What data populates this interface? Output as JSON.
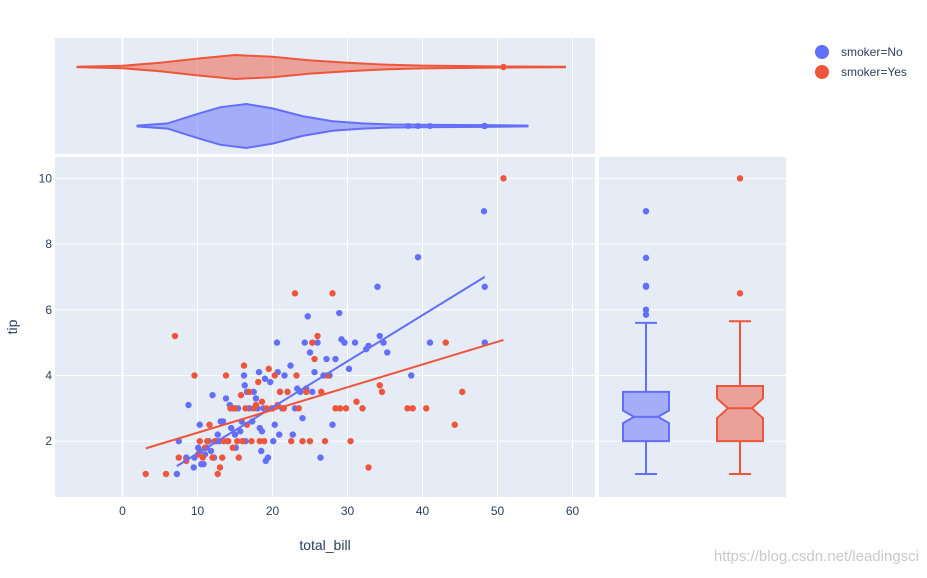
{
  "colors": {
    "no": "#636efa",
    "yes": "#ef553b",
    "plot_bg": "#e5ecf6",
    "text": "#2a3f5f"
  },
  "legend": {
    "items": [
      {
        "label": "smoker=No",
        "color": "#636efa"
      },
      {
        "label": "smoker=Yes",
        "color": "#ef553b"
      }
    ]
  },
  "watermark": "https://blog.csdn.net/leadingsci",
  "chart_data": [
    {
      "type": "scatter",
      "xlabel": "total_bill",
      "ylabel": "tip",
      "xlim": [
        -9,
        63
      ],
      "ylim": [
        0.3,
        10.65
      ],
      "xticks": [
        0,
        10,
        20,
        30,
        40,
        50,
        60
      ],
      "yticks": [
        2,
        4,
        6,
        8,
        10
      ],
      "grid": true,
      "legend_position": "top-right",
      "series": [
        {
          "name": "smoker=No",
          "color": "#636efa",
          "points": [
            [
              7.25,
              1.0
            ],
            [
              7.5,
              2.0
            ],
            [
              8.5,
              1.5
            ],
            [
              8.8,
              3.1
            ],
            [
              9.5,
              1.2
            ],
            [
              9.6,
              1.5
            ],
            [
              10.1,
              1.8
            ],
            [
              10.3,
              1.7
            ],
            [
              10.3,
              2.5
            ],
            [
              10.5,
              1.3
            ],
            [
              10.8,
              1.3
            ],
            [
              11,
              1.6
            ],
            [
              11.2,
              1.8
            ],
            [
              11.5,
              2.0
            ],
            [
              11.8,
              1.7
            ],
            [
              12,
              3.4
            ],
            [
              12.2,
              1.5
            ],
            [
              12.5,
              2.0
            ],
            [
              12.7,
              2.2
            ],
            [
              12.9,
              2.0
            ],
            [
              13.1,
              2.6
            ],
            [
              13.4,
              2.6
            ],
            [
              13.8,
              3.3
            ],
            [
              14,
              2.0
            ],
            [
              14.3,
              3.1
            ],
            [
              14.5,
              2.4
            ],
            [
              14.8,
              3.0
            ],
            [
              15,
              2.2
            ],
            [
              15.1,
              1.8
            ],
            [
              15.4,
              3.0
            ],
            [
              15.7,
              2.3
            ],
            [
              15.9,
              2.6
            ],
            [
              16.2,
              4.0
            ],
            [
              16.3,
              3.7
            ],
            [
              16.4,
              2.0
            ],
            [
              16.6,
              3.5
            ],
            [
              16.9,
              3.0
            ],
            [
              17.3,
              2.6
            ],
            [
              17.5,
              3.5
            ],
            [
              17.8,
              3.3
            ],
            [
              18,
              3.0
            ],
            [
              18.2,
              4.1
            ],
            [
              18.3,
              2.4
            ],
            [
              18.5,
              1.7
            ],
            [
              18.6,
              2.3
            ],
            [
              18.8,
              3.0
            ],
            [
              19,
              3.9
            ],
            [
              19.1,
              1.4
            ],
            [
              19.4,
              1.5
            ],
            [
              19.7,
              3.8
            ],
            [
              20,
              3.0
            ],
            [
              20.1,
              2.0
            ],
            [
              20.3,
              2.5
            ],
            [
              20.6,
              5.0
            ],
            [
              20.7,
              4.1
            ],
            [
              20.9,
              2.2
            ],
            [
              21,
              3.5
            ],
            [
              21.3,
              3.0
            ],
            [
              21.6,
              4.0
            ],
            [
              22,
              3.5
            ],
            [
              22.4,
              4.3
            ],
            [
              22.7,
              2.2
            ],
            [
              23,
              3.0
            ],
            [
              23.3,
              3.6
            ],
            [
              23.7,
              3.5
            ],
            [
              24,
              2.7
            ],
            [
              24.3,
              5.0
            ],
            [
              24.5,
              3.6
            ],
            [
              24.7,
              5.8
            ],
            [
              25,
              4.7
            ],
            [
              25.3,
              3.5
            ],
            [
              25.6,
              4.1
            ],
            [
              26,
              5.0
            ],
            [
              26.4,
              1.5
            ],
            [
              26.8,
              4.0
            ],
            [
              27.2,
              4.5
            ],
            [
              27.6,
              4.0
            ],
            [
              28,
              2.5
            ],
            [
              28.4,
              4.5
            ],
            [
              28.9,
              5.9
            ],
            [
              29.2,
              5.1
            ],
            [
              29.6,
              5.0
            ],
            [
              30.2,
              4.2
            ],
            [
              31,
              5.0
            ],
            [
              32.5,
              4.8
            ],
            [
              32.8,
              4.9
            ],
            [
              34,
              6.7
            ],
            [
              34.3,
              5.2
            ],
            [
              34.8,
              5.0
            ],
            [
              35.3,
              4.7
            ],
            [
              38.5,
              4.0
            ],
            [
              39.4,
              7.6
            ],
            [
              41,
              5.0
            ],
            [
              48.2,
              9.0
            ],
            [
              48.3,
              6.7
            ],
            [
              48.3,
              5.0
            ]
          ],
          "trendline": {
            "x": [
              7.25,
              48.3
            ],
            "y": [
              1.24,
              7.0
            ]
          }
        },
        {
          "name": "smoker=Yes",
          "color": "#ef553b",
          "points": [
            [
              3.1,
              1.0
            ],
            [
              5.8,
              1.0
            ],
            [
              7.0,
              5.2
            ],
            [
              7.5,
              1.5
            ],
            [
              8.5,
              1.4
            ],
            [
              9.6,
              4.0
            ],
            [
              10.1,
              1.6
            ],
            [
              10.3,
              2.0
            ],
            [
              10.7,
              1.5
            ],
            [
              11.0,
              1.8
            ],
            [
              11.3,
              2.0
            ],
            [
              11.6,
              2.5
            ],
            [
              12.0,
              1.5
            ],
            [
              12.3,
              2.0
            ],
            [
              12.7,
              1.0
            ],
            [
              13.0,
              1.2
            ],
            [
              13.3,
              1.5
            ],
            [
              13.5,
              2.0
            ],
            [
              13.8,
              4.0
            ],
            [
              14.1,
              2.0
            ],
            [
              14.4,
              3.0
            ],
            [
              14.7,
              1.8
            ],
            [
              15.0,
              3.0
            ],
            [
              15.3,
              2.0
            ],
            [
              15.5,
              1.5
            ],
            [
              15.8,
              3.4
            ],
            [
              16.0,
              2.0
            ],
            [
              16.2,
              4.3
            ],
            [
              16.4,
              3.0
            ],
            [
              16.6,
              2.5
            ],
            [
              16.9,
              3.5
            ],
            [
              17.2,
              2.0
            ],
            [
              17.5,
              3.0
            ],
            [
              17.8,
              3.1
            ],
            [
              18.1,
              3.8
            ],
            [
              18.3,
              2.0
            ],
            [
              18.6,
              3.2
            ],
            [
              18.9,
              2.0
            ],
            [
              19.2,
              3.0
            ],
            [
              19.5,
              4.2
            ],
            [
              19.9,
              3.0
            ],
            [
              20.3,
              4.0
            ],
            [
              20.7,
              3.1
            ],
            [
              21.0,
              3.5
            ],
            [
              21.5,
              3.0
            ],
            [
              22.0,
              3.5
            ],
            [
              22.5,
              2.0
            ],
            [
              23.0,
              6.5
            ],
            [
              23.2,
              4.0
            ],
            [
              23.5,
              3.0
            ],
            [
              24.0,
              2.0
            ],
            [
              24.5,
              3.5
            ],
            [
              25.0,
              2.0
            ],
            [
              25.3,
              5.0
            ],
            [
              25.6,
              4.5
            ],
            [
              26.0,
              5.2
            ],
            [
              26.5,
              3.5
            ],
            [
              27.0,
              2.0
            ],
            [
              27.3,
              4.0
            ],
            [
              28.0,
              6.5
            ],
            [
              28.4,
              3.0
            ],
            [
              29.0,
              3.0
            ],
            [
              29.8,
              3.0
            ],
            [
              30.4,
              2.0
            ],
            [
              31.2,
              3.2
            ],
            [
              32.0,
              3.0
            ],
            [
              32.8,
              1.2
            ],
            [
              34.3,
              3.7
            ],
            [
              34.6,
              3.5
            ],
            [
              38.0,
              3.0
            ],
            [
              38.7,
              3.0
            ],
            [
              40.5,
              3.0
            ],
            [
              43.1,
              5.0
            ],
            [
              44.3,
              2.5
            ],
            [
              45.3,
              3.5
            ],
            [
              50.8,
              10.0
            ]
          ],
          "trendline": {
            "x": [
              3.1,
              50.8
            ],
            "y": [
              1.78,
              5.08
            ]
          }
        }
      ]
    },
    {
      "type": "violin",
      "orientation": "horizontal",
      "shared_x": "total_bill",
      "series": [
        {
          "name": "smoker=No",
          "color": "#636efa",
          "range": [
            2,
            54
          ],
          "profile": [
            [
              2,
              0.02
            ],
            [
              6,
              0.12
            ],
            [
              10,
              0.55
            ],
            [
              13,
              0.85
            ],
            [
              16.5,
              1.0
            ],
            [
              20,
              0.8
            ],
            [
              24,
              0.45
            ],
            [
              28,
              0.22
            ],
            [
              32,
              0.12
            ],
            [
              36,
              0.07
            ],
            [
              42,
              0.05
            ],
            [
              48,
              0.04
            ],
            [
              54,
              0.02
            ]
          ],
          "outliers": [
            38.1,
            39.4,
            41.0,
            48.2,
            48.3
          ],
          "marker": 48.3
        },
        {
          "name": "smoker=Yes",
          "color": "#ef553b",
          "range": [
            -6,
            59
          ],
          "profile": [
            [
              -6,
              0.02
            ],
            [
              0,
              0.1
            ],
            [
              5,
              0.35
            ],
            [
              10,
              0.7
            ],
            [
              15,
              1.0
            ],
            [
              20,
              0.85
            ],
            [
              25,
              0.55
            ],
            [
              30,
              0.35
            ],
            [
              35,
              0.2
            ],
            [
              40,
              0.12
            ],
            [
              45,
              0.08
            ],
            [
              51,
              0.04
            ],
            [
              59,
              0.02
            ]
          ],
          "outliers": [],
          "marker": 50.8
        }
      ]
    },
    {
      "type": "box",
      "shared_y": "tip",
      "notched": true,
      "series": [
        {
          "name": "smoker=No",
          "color": "#636efa",
          "lowerfence": 1.0,
          "q1": 2.0,
          "median": 2.74,
          "q3": 3.5,
          "upperfence": 5.6,
          "notch": [
            2.55,
            2.93
          ],
          "outliers": [
            5.85,
            6.0,
            6.7,
            6.73,
            7.58,
            9.0
          ]
        },
        {
          "name": "smoker=Yes",
          "color": "#ef553b",
          "lowerfence": 1.0,
          "q1": 2.0,
          "median": 3.0,
          "q3": 3.68,
          "upperfence": 5.65,
          "notch": [
            2.7,
            3.3
          ],
          "outliers": [
            6.5,
            10.0
          ]
        }
      ]
    }
  ]
}
